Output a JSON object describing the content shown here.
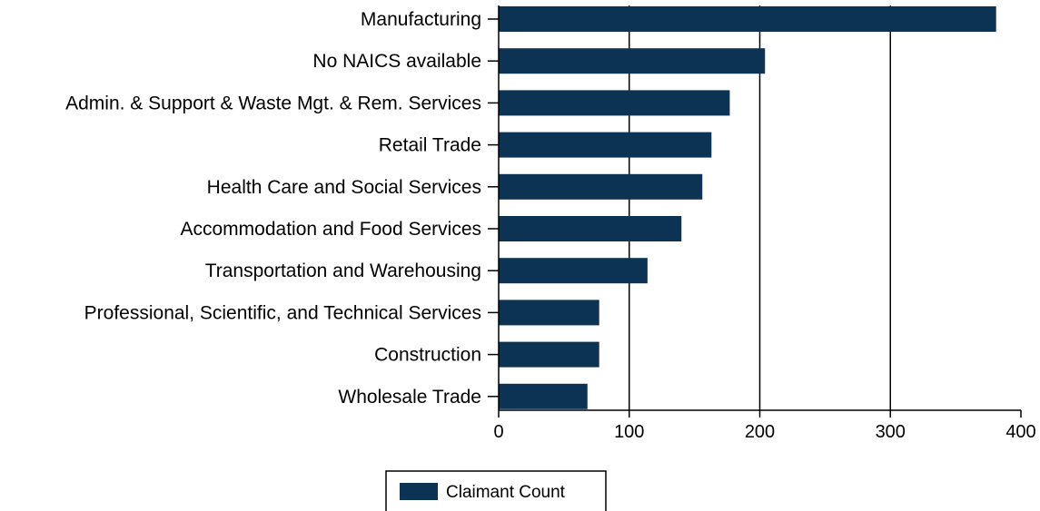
{
  "colors": {
    "bar": "#0d3354",
    "gridline": "#000000",
    "axis": "#000000",
    "background": "#ffffff"
  },
  "chart_data": {
    "type": "bar",
    "orientation": "horizontal",
    "categories": [
      "Manufacturing",
      "No NAICS available",
      "Admin. & Support & Waste Mgt. & Rem. Services",
      "Retail Trade",
      "Health Care and Social Services",
      "Accommodation and Food Services",
      "Transportation and Warehousing",
      "Professional, Scientific, and Technical Services",
      "Construction",
      "Wholesale Trade"
    ],
    "series": [
      {
        "name": "Claimant Count",
        "values": [
          381,
          204,
          177,
          163,
          156,
          140,
          114,
          77,
          77,
          68
        ]
      }
    ],
    "title": "",
    "xlabel": "",
    "ylabel": "",
    "xlim": [
      0,
      400
    ],
    "xticks": [
      "0",
      "100",
      "200",
      "300",
      "400"
    ],
    "grid": "vertical",
    "legend_position": "bottom-center"
  }
}
